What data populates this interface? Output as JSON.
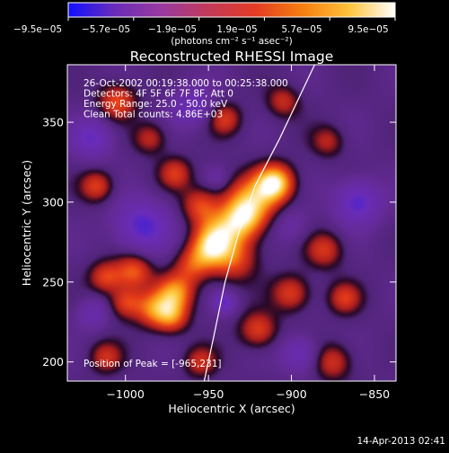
{
  "chart_data": {
    "type": "heatmap",
    "title": "Reconstructed RHESSI Image",
    "xlabel": "Heliocentric X (arcsec)",
    "ylabel": "Heliocentric Y (arcsec)",
    "xlim": [
      -1035,
      -837
    ],
    "ylim": [
      188,
      386
    ],
    "x_ticks": [
      {
        "value": -1000,
        "label": "−1000"
      },
      {
        "value": -950,
        "label": "−950"
      },
      {
        "value": -900,
        "label": "−900"
      },
      {
        "value": -850,
        "label": "−850"
      }
    ],
    "y_ticks": [
      {
        "value": 200,
        "label": "200"
      },
      {
        "value": 250,
        "label": "250"
      },
      {
        "value": 300,
        "label": "300"
      },
      {
        "value": 350,
        "label": "350"
      }
    ],
    "colorbar": {
      "range": [
        -9.5e-05,
        9.5e-05
      ],
      "labels": [
        "−9.5e−05",
        "−5.7e−05",
        "−1.9e−05",
        "1.9e−05",
        "5.7e−05",
        "9.5e−05"
      ],
      "units": "(photons cm⁻² s⁻¹ asec⁻²)",
      "colors": [
        "#1010ff",
        "#6a2cb8",
        "#9a3aa0",
        "#c23a58",
        "#e33b24",
        "#f57d10",
        "#ffc23a",
        "#ffffff"
      ]
    },
    "annotations": [
      "26-Oct-2002 00:19:38.000 to 00:25:38.000",
      "Detectors: 4F 5F 6F 7F 8F, Att 0",
      "Energy Range: 25.0 - 50.0 keV",
      "Clean     Total counts: 4.86E+03"
    ],
    "peak_label": "Position of Peak = [-965,231]",
    "limb_points": [
      [
        -953,
        186
      ],
      [
        -947,
        215
      ],
      [
        -940,
        250
      ],
      [
        -932,
        280
      ],
      [
        -922,
        310
      ],
      [
        -907,
        340
      ],
      [
        -886,
        386
      ]
    ],
    "sources": [
      {
        "x": -910,
        "y": 312,
        "intensity": 1.0,
        "sigma": 8
      },
      {
        "x": -925,
        "y": 300,
        "intensity": 0.75,
        "sigma": 11
      },
      {
        "x": -930,
        "y": 288,
        "intensity": 0.65,
        "sigma": 9
      },
      {
        "x": -945,
        "y": 280,
        "intensity": 0.6,
        "sigma": 9
      },
      {
        "x": -935,
        "y": 265,
        "intensity": 0.55,
        "sigma": 10
      },
      {
        "x": -950,
        "y": 270,
        "intensity": 0.55,
        "sigma": 8
      },
      {
        "x": -955,
        "y": 298,
        "intensity": 0.5,
        "sigma": 8
      },
      {
        "x": -960,
        "y": 260,
        "intensity": 0.45,
        "sigma": 8
      },
      {
        "x": -970,
        "y": 243,
        "intensity": 0.7,
        "sigma": 8
      },
      {
        "x": -983,
        "y": 233,
        "intensity": 0.6,
        "sigma": 8
      },
      {
        "x": -972,
        "y": 228,
        "intensity": 0.55,
        "sigma": 7
      },
      {
        "x": -995,
        "y": 257,
        "intensity": 0.6,
        "sigma": 8
      },
      {
        "x": -1012,
        "y": 253,
        "intensity": 0.5,
        "sigma": 7
      },
      {
        "x": -1000,
        "y": 237,
        "intensity": 0.5,
        "sigma": 7
      },
      {
        "x": -1017,
        "y": 310,
        "intensity": 0.5,
        "sigma": 7
      },
      {
        "x": -1005,
        "y": 363,
        "intensity": 0.55,
        "sigma": 8
      },
      {
        "x": -985,
        "y": 340,
        "intensity": 0.4,
        "sigma": 7
      },
      {
        "x": -970,
        "y": 318,
        "intensity": 0.45,
        "sigma": 7
      },
      {
        "x": -920,
        "y": 220,
        "intensity": 0.5,
        "sigma": 8
      },
      {
        "x": -900,
        "y": 243,
        "intensity": 0.5,
        "sigma": 8
      },
      {
        "x": -880,
        "y": 270,
        "intensity": 0.45,
        "sigma": 8
      },
      {
        "x": -868,
        "y": 240,
        "intensity": 0.45,
        "sigma": 7
      },
      {
        "x": -875,
        "y": 200,
        "intensity": 0.45,
        "sigma": 8
      },
      {
        "x": -940,
        "y": 352,
        "intensity": 0.45,
        "sigma": 7
      },
      {
        "x": -905,
        "y": 363,
        "intensity": 0.4,
        "sigma": 7
      },
      {
        "x": -878,
        "y": 338,
        "intensity": 0.35,
        "sigma": 7
      },
      {
        "x": -1012,
        "y": 203,
        "intensity": 0.4,
        "sigma": 7
      },
      {
        "x": -955,
        "y": 200,
        "intensity": 0.4,
        "sigma": 7
      },
      {
        "x": -940,
        "y": 237,
        "intensity": -0.5,
        "sigma": 5
      },
      {
        "x": -990,
        "y": 285,
        "intensity": -0.6,
        "sigma": 12
      },
      {
        "x": -860,
        "y": 300,
        "intensity": -0.6,
        "sigma": 10
      },
      {
        "x": -1020,
        "y": 340,
        "intensity": -0.5,
        "sigma": 9
      },
      {
        "x": -960,
        "y": 360,
        "intensity": -0.45,
        "sigma": 9
      },
      {
        "x": -895,
        "y": 205,
        "intensity": -0.45,
        "sigma": 8
      },
      {
        "x": -1020,
        "y": 230,
        "intensity": -0.35,
        "sigma": 7
      },
      {
        "x": -900,
        "y": 285,
        "intensity": -0.25,
        "sigma": 8
      },
      {
        "x": -945,
        "y": 315,
        "intensity": -0.2,
        "sigma": 5
      }
    ]
  },
  "footer": {
    "timestamp": "14-Apr-2013 02:41"
  }
}
